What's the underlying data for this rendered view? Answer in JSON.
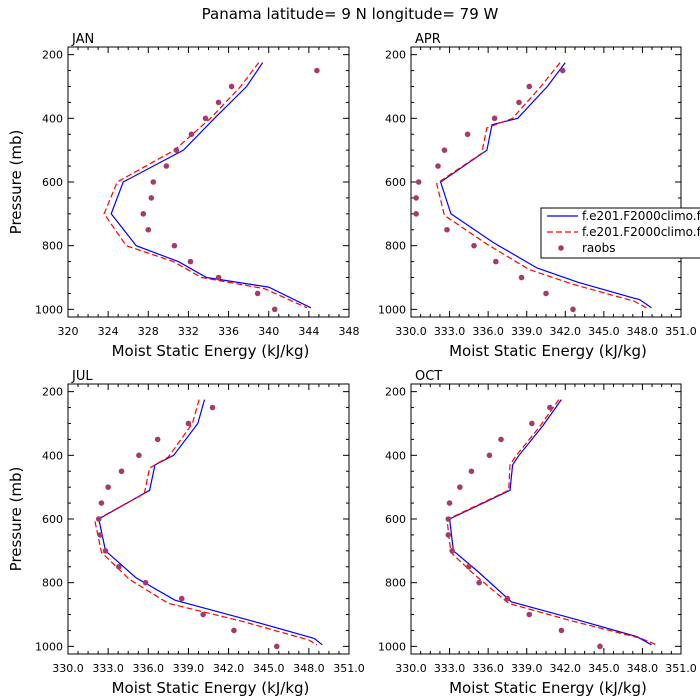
{
  "title": "Panama  latitude= 9 N longitude= 79 W",
  "colors": {
    "model1": "#0000ff",
    "model2": "#ff0000",
    "obs": "#a63a6a"
  },
  "legend": {
    "placement": "right-center",
    "entries": [
      "f.e201.F2000climo.f",
      "f.e201.F2000climo.f",
      "raobs"
    ]
  },
  "chart_data": [
    {
      "type": "line",
      "title": "JAN",
      "xlabel": "Moist Static Energy (kJ/kg)",
      "ylabel": "Pressure (mb)",
      "xlim": [
        320,
        348
      ],
      "ylim": [
        1000,
        200
      ],
      "y_axis_inverted": true,
      "x_ticks": [
        "320",
        "324",
        "328",
        "332",
        "336",
        "340",
        "344",
        "348"
      ],
      "x_tick_values": [
        320,
        324,
        328,
        332,
        336,
        340,
        344,
        348
      ],
      "y_ticks": [
        "200",
        "400",
        "600",
        "800",
        "1000"
      ],
      "y_tick_values": [
        200,
        400,
        600,
        800,
        1000
      ],
      "series": [
        {
          "name": "f.e201.F2000climo.f",
          "kind": "solid-line",
          "points": [
            [
              339.4,
              225
            ],
            [
              337.8,
              300
            ],
            [
              334.6,
              400
            ],
            [
              331.5,
              500
            ],
            [
              325.5,
              600
            ],
            [
              324.3,
              700
            ],
            [
              326.8,
              800
            ],
            [
              331.0,
              850
            ],
            [
              333.8,
              900
            ],
            [
              340.0,
              930
            ],
            [
              344.2,
              995
            ]
          ]
        },
        {
          "name": "f.e201.F2000climo.f",
          "kind": "dashed-line",
          "points": [
            [
              339.0,
              225
            ],
            [
              337.2,
              300
            ],
            [
              334.2,
              400
            ],
            [
              330.6,
              500
            ],
            [
              324.9,
              600
            ],
            [
              323.6,
              700
            ],
            [
              325.8,
              800
            ],
            [
              330.5,
              850
            ],
            [
              333.3,
              900
            ],
            [
              339.6,
              935
            ],
            [
              343.8,
              995
            ]
          ]
        },
        {
          "name": "raobs",
          "kind": "markers",
          "points": [
            [
              344.8,
              250
            ],
            [
              336.3,
              300
            ],
            [
              335.0,
              350
            ],
            [
              333.7,
              400
            ],
            [
              332.3,
              450
            ],
            [
              330.8,
              500
            ],
            [
              329.8,
              550
            ],
            [
              328.5,
              600
            ],
            [
              328.3,
              650
            ],
            [
              327.5,
              700
            ],
            [
              328.0,
              750
            ],
            [
              330.6,
              800
            ],
            [
              332.2,
              850
            ],
            [
              335.0,
              900
            ],
            [
              338.9,
              950
            ],
            [
              340.6,
              1000
            ]
          ]
        }
      ]
    },
    {
      "type": "line",
      "title": "APR",
      "xlabel": "Moist Static Energy (kJ/kg)",
      "ylabel": "",
      "xlim": [
        330,
        351
      ],
      "ylim": [
        1000,
        200
      ],
      "y_axis_inverted": true,
      "x_ticks": [
        "330.0",
        "333.0",
        "336.0",
        "339.0",
        "342.0",
        "345.0",
        "348.0",
        "351.0"
      ],
      "x_tick_values": [
        330,
        333,
        336,
        339,
        342,
        345,
        348,
        351
      ],
      "y_ticks": [
        "200",
        "400",
        "600",
        "800",
        "1000"
      ],
      "y_tick_values": [
        200,
        400,
        600,
        800,
        1000
      ],
      "series": [
        {
          "name": "f.e201.F2000climo.f",
          "kind": "solid-line",
          "points": [
            [
              342.0,
              225
            ],
            [
              340.6,
              300
            ],
            [
              338.3,
              400
            ],
            [
              336.3,
              420
            ],
            [
              335.9,
              500
            ],
            [
              332.3,
              600
            ],
            [
              333.1,
              700
            ],
            [
              336.4,
              790
            ],
            [
              339.8,
              870
            ],
            [
              343.0,
              915
            ],
            [
              347.8,
              970
            ],
            [
              348.7,
              995
            ]
          ]
        },
        {
          "name": "f.e201.F2000climo.f",
          "kind": "dashed-line",
          "points": [
            [
              341.6,
              225
            ],
            [
              340.1,
              300
            ],
            [
              337.9,
              400
            ],
            [
              335.9,
              430
            ],
            [
              335.5,
              510
            ],
            [
              332.0,
              605
            ],
            [
              332.6,
              705
            ],
            [
              335.9,
              795
            ],
            [
              339.2,
              875
            ],
            [
              342.5,
              920
            ],
            [
              347.4,
              975
            ],
            [
              348.3,
              995
            ]
          ]
        },
        {
          "name": "raobs",
          "kind": "markers",
          "points": [
            [
              341.8,
              250
            ],
            [
              339.2,
              300
            ],
            [
              338.4,
              350
            ],
            [
              336.5,
              400
            ],
            [
              334.4,
              450
            ],
            [
              332.6,
              500
            ],
            [
              332.1,
              550
            ],
            [
              330.6,
              600
            ],
            [
              330.4,
              650
            ],
            [
              330.4,
              700
            ],
            [
              332.8,
              750
            ],
            [
              334.9,
              800
            ],
            [
              336.6,
              850
            ],
            [
              338.6,
              900
            ],
            [
              340.5,
              950
            ],
            [
              342.6,
              1000
            ]
          ]
        }
      ]
    },
    {
      "type": "line",
      "title": "JUL",
      "xlabel": "Moist Static Energy (kJ/kg)",
      "ylabel": "Pressure (mb)",
      "xlim": [
        330,
        351
      ],
      "ylim": [
        1000,
        200
      ],
      "y_axis_inverted": true,
      "x_ticks": [
        "330.0",
        "333.0",
        "336.0",
        "339.0",
        "342.0",
        "345.0",
        "348.0",
        "351.0"
      ],
      "x_tick_values": [
        330,
        333,
        336,
        339,
        342,
        345,
        348,
        351
      ],
      "y_ticks": [
        "200",
        "400",
        "600",
        "800",
        "1000"
      ],
      "y_tick_values": [
        200,
        400,
        600,
        800,
        1000
      ],
      "series": [
        {
          "name": "f.e201.F2000climo.f",
          "kind": "solid-line",
          "points": [
            [
              340.2,
              225
            ],
            [
              339.7,
              300
            ],
            [
              337.9,
              400
            ],
            [
              336.5,
              430
            ],
            [
              336.1,
              510
            ],
            [
              332.3,
              600
            ],
            [
              332.8,
              700
            ],
            [
              335.1,
              785
            ],
            [
              338.0,
              855
            ],
            [
              343.3,
              915
            ],
            [
              348.4,
              975
            ],
            [
              349.0,
              995
            ]
          ]
        },
        {
          "name": "f.e201.F2000climo.f",
          "kind": "dashed-line",
          "points": [
            [
              339.8,
              225
            ],
            [
              339.3,
              300
            ],
            [
              337.5,
              405
            ],
            [
              336.1,
              440
            ],
            [
              335.7,
              520
            ],
            [
              332.0,
              605
            ],
            [
              332.5,
              705
            ],
            [
              334.6,
              790
            ],
            [
              337.5,
              865
            ],
            [
              342.9,
              920
            ],
            [
              348.0,
              980
            ],
            [
              348.6,
              995
            ]
          ]
        },
        {
          "name": "raobs",
          "kind": "markers",
          "points": [
            [
              340.8,
              250
            ],
            [
              339.0,
              300
            ],
            [
              336.7,
              350
            ],
            [
              335.3,
              400
            ],
            [
              334.0,
              450
            ],
            [
              333.0,
              500
            ],
            [
              332.5,
              550
            ],
            [
              332.3,
              600
            ],
            [
              332.4,
              650
            ],
            [
              332.8,
              700
            ],
            [
              333.8,
              750
            ],
            [
              335.8,
              800
            ],
            [
              338.5,
              850
            ],
            [
              340.1,
              900
            ],
            [
              342.4,
              950
            ],
            [
              345.6,
              1000
            ]
          ]
        }
      ]
    },
    {
      "type": "line",
      "title": "OCT",
      "xlabel": "Moist Static Energy (kJ/kg)",
      "ylabel": "",
      "xlim": [
        330,
        351
      ],
      "ylim": [
        1000,
        200
      ],
      "y_axis_inverted": true,
      "x_ticks": [
        "330.0",
        "333.0",
        "336.0",
        "339.0",
        "342.0",
        "345.0",
        "348.0",
        "351.0"
      ],
      "x_tick_values": [
        330,
        333,
        336,
        339,
        342,
        345,
        348,
        351
      ],
      "y_ticks": [
        "200",
        "400",
        "600",
        "800",
        "1000"
      ],
      "y_tick_values": [
        200,
        400,
        600,
        800,
        1000
      ],
      "series": [
        {
          "name": "f.e201.F2000climo.f",
          "kind": "solid-line",
          "points": [
            [
              341.7,
              225
            ],
            [
              340.2,
              310
            ],
            [
              338.4,
              400
            ],
            [
              337.9,
              430
            ],
            [
              337.7,
              510
            ],
            [
              333.0,
              600
            ],
            [
              333.3,
              700
            ],
            [
              335.2,
              765
            ],
            [
              337.8,
              860
            ],
            [
              342.8,
              915
            ],
            [
              347.6,
              970
            ],
            [
              348.7,
              995
            ]
          ]
        },
        {
          "name": "f.e201.F2000climo.f",
          "kind": "dashed-line",
          "points": [
            [
              341.5,
              225
            ],
            [
              340.0,
              310
            ],
            [
              338.2,
              400
            ],
            [
              337.7,
              430
            ],
            [
              337.6,
              510
            ],
            [
              332.8,
              602
            ],
            [
              333.1,
              705
            ],
            [
              334.8,
              770
            ],
            [
              337.6,
              865
            ],
            [
              342.5,
              920
            ],
            [
              347.9,
              975
            ],
            [
              349.1,
              995
            ]
          ]
        },
        {
          "name": "raobs",
          "kind": "markers",
          "points": [
            [
              340.8,
              250
            ],
            [
              339.4,
              300
            ],
            [
              337.0,
              350
            ],
            [
              336.1,
              400
            ],
            [
              334.7,
              450
            ],
            [
              333.8,
              500
            ],
            [
              333.0,
              550
            ],
            [
              332.9,
              600
            ],
            [
              332.9,
              650
            ],
            [
              333.2,
              700
            ],
            [
              334.5,
              750
            ],
            [
              335.3,
              800
            ],
            [
              337.5,
              850
            ],
            [
              339.2,
              900
            ],
            [
              341.7,
              950
            ],
            [
              344.7,
              1000
            ]
          ]
        }
      ]
    }
  ]
}
